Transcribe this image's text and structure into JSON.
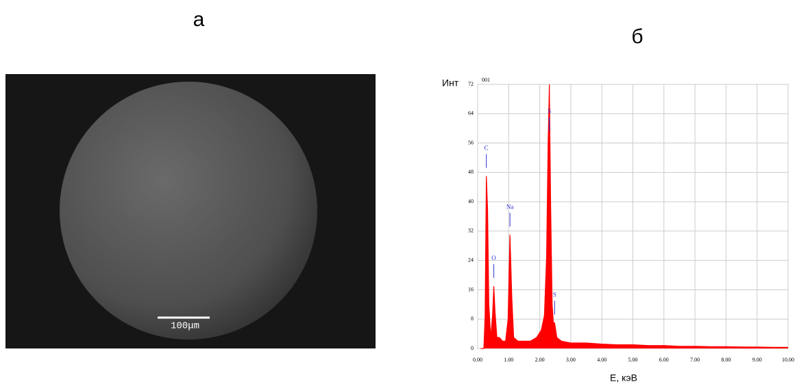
{
  "panel_a": {
    "label": "а",
    "scale_bar": "100μm"
  },
  "panel_b": {
    "label": "б"
  },
  "chart_data": {
    "type": "area",
    "ylabel": "Инт",
    "xlabel": "E, кэВ",
    "corner_text": "001",
    "x": [
      0.1,
      0.2,
      0.24,
      0.28,
      0.32,
      0.36,
      0.42,
      0.48,
      0.52,
      0.56,
      0.62,
      0.7,
      0.8,
      0.9,
      0.98,
      1.04,
      1.1,
      1.16,
      1.3,
      1.5,
      1.7,
      1.9,
      2.05,
      2.15,
      2.22,
      2.27,
      2.31,
      2.35,
      2.4,
      2.44,
      2.48,
      2.55,
      2.7,
      3.0,
      3.5,
      4.0,
      4.5,
      5.0,
      5.5,
      6.0,
      6.5,
      7.0,
      7.5,
      8.0,
      8.5,
      9.0,
      9.5,
      10.0
    ],
    "series": [
      {
        "color": "#ff0000",
        "values": [
          0,
          0,
          9,
          47,
          38,
          12,
          3,
          9,
          17,
          10,
          3,
          3,
          2,
          2,
          8,
          31,
          14,
          3,
          2,
          2,
          2,
          3,
          5,
          9,
          25,
          56,
          72,
          40,
          12,
          7,
          7,
          3,
          2,
          1.5,
          1.5,
          1.2,
          1.0,
          1,
          0.8,
          0.8,
          0.6,
          0.6,
          0.5,
          0.5,
          0.4,
          0.4,
          0.3,
          0.3
        ]
      }
    ],
    "peaks": [
      {
        "label": "C",
        "x": 0.28,
        "y": 47
      },
      {
        "label": "O",
        "x": 0.52,
        "y": 17
      },
      {
        "label": "Na",
        "x": 1.04,
        "y": 31
      },
      {
        "label": "S",
        "x": 2.31,
        "y": 72
      },
      {
        "label": "S",
        "x": 2.48,
        "y": 7
      }
    ],
    "peak_color": "#3030d0",
    "xlim": [
      0,
      10
    ],
    "ylim": [
      0,
      72
    ],
    "xticks": [
      {
        "value": 0,
        "label": "0.00"
      },
      {
        "value": 1,
        "label": "1.00"
      },
      {
        "value": 2,
        "label": "2.00"
      },
      {
        "value": 3,
        "label": "3.00"
      },
      {
        "value": 4,
        "label": "4.00"
      },
      {
        "value": 5,
        "label": "5.00"
      },
      {
        "value": 6,
        "label": "6.00"
      },
      {
        "value": 7,
        "label": "7.00"
      },
      {
        "value": 8,
        "label": "8.00"
      },
      {
        "value": 9,
        "label": "9.00"
      },
      {
        "value": 10,
        "label": "10.00"
      }
    ],
    "yticks": [
      0,
      8,
      16,
      24,
      32,
      40,
      48,
      56,
      64,
      72
    ],
    "grid": true
  }
}
